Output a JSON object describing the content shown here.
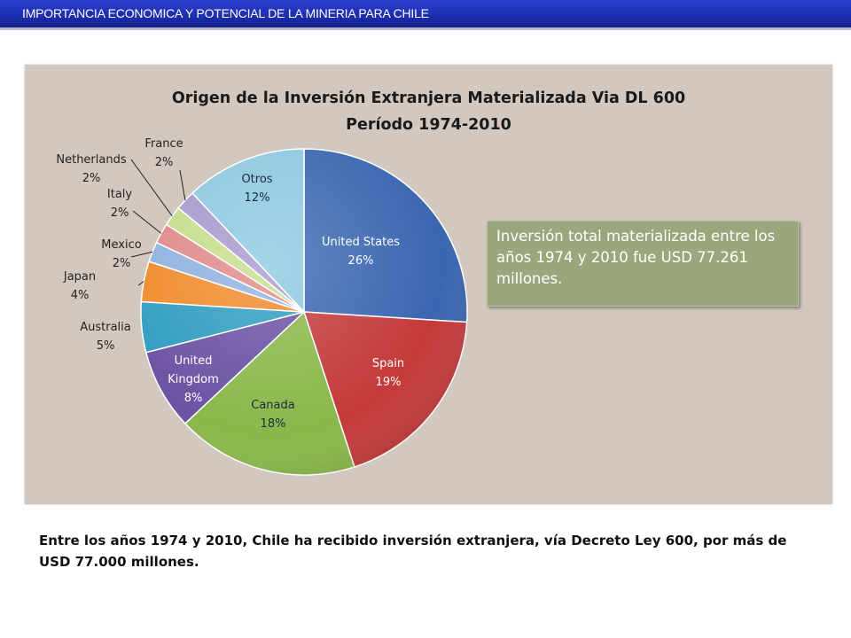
{
  "header": {
    "title": "IMPORTANCIA  ECONOMICA Y POTENCIAL DE LA MINERIA PARA CHILE"
  },
  "colors": {
    "header_bar": "#1a2aa8",
    "panel": "#d3c8bf",
    "note_box": "#9aa67b"
  },
  "chart_data": {
    "type": "pie",
    "title": "Origen de la Inversión Extranjera Materializada  Via DL 600",
    "subtitle": "Período 1974-2010",
    "slices": [
      {
        "label": "United States",
        "value": 26,
        "pct_label": "26%",
        "color": "#3a66b0"
      },
      {
        "label": "Spain",
        "value": 19,
        "pct_label": "19%",
        "color": "#c43a3a"
      },
      {
        "label": "Canada",
        "value": 18,
        "pct_label": "18%",
        "color": "#8ab84a"
      },
      {
        "label": "United Kingdom",
        "value": 8,
        "pct_label": "8%",
        "color": "#6b52a3"
      },
      {
        "label": "Australia",
        "value": 5,
        "pct_label": "5%",
        "color": "#2f9cc0"
      },
      {
        "label": "Japan",
        "value": 4,
        "pct_label": "4%",
        "color": "#f08a2a"
      },
      {
        "label": "Mexico",
        "value": 2,
        "pct_label": "2%",
        "color": "#8fb0e0"
      },
      {
        "label": "Italy",
        "value": 2,
        "pct_label": "2%",
        "color": "#e08888"
      },
      {
        "label": "Netherlands",
        "value": 2,
        "pct_label": "2%",
        "color": "#c6dc8a"
      },
      {
        "label": "France",
        "value": 2,
        "pct_label": "2%",
        "color": "#a898cc"
      },
      {
        "label": "Otros",
        "value": 12,
        "pct_label": "12%",
        "color": "#8cc8e0"
      }
    ],
    "label_lines": {
      "united_kingdom": [
        "United",
        "Kingdom",
        "8%"
      ]
    }
  },
  "note": {
    "text": "Inversión total materializada entre los años 1974 y 2010 fue USD 77.261 millones."
  },
  "caption": {
    "text": "Entre los años 1974 y 2010, Chile ha recibido inversión extranjera, vía Decreto Ley 600, por más de USD 77.000 millones."
  }
}
